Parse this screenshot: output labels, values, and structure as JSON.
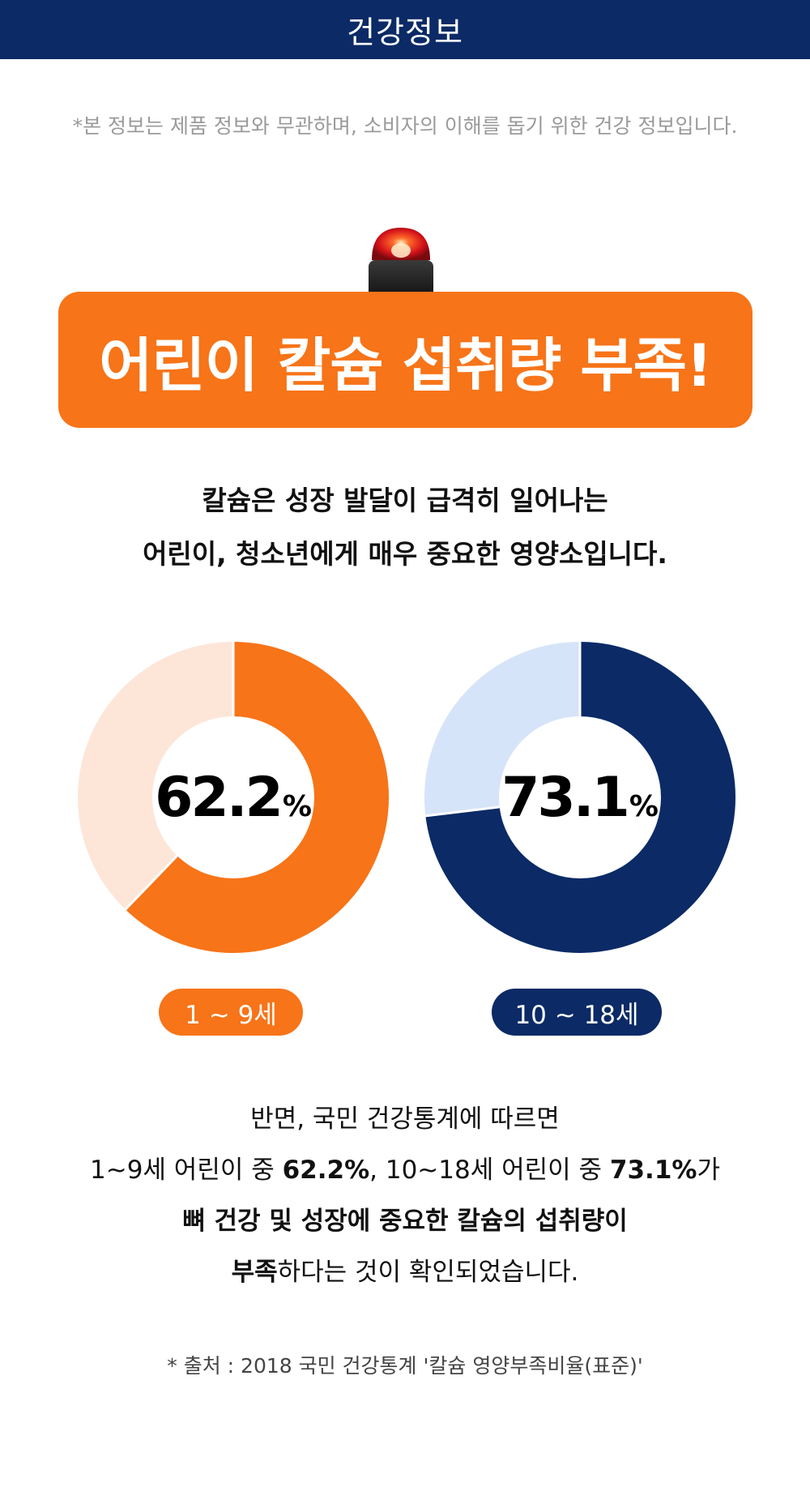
{
  "header": {
    "title": "건강정보"
  },
  "disclaimer": "*본 정보는 제품 정보와 무관하며, 소비자의 이해를 돕기 위한 건강 정보입니다.",
  "banner": {
    "title": "어린이 칼슘 섭취량 부족!",
    "color": "#f77418",
    "icon": "siren-icon"
  },
  "intro": {
    "line1": "칼슘은 성장 발달이 급격히 일어나는",
    "line2": "어린이, 청소년에게 매우 중요한 영양소입니다."
  },
  "colors": {
    "navy": "#0b2a66",
    "orange": "#f77418",
    "orange_light": "#fde6d8",
    "navy_light": "#d6e4f9"
  },
  "chart_data": [
    {
      "type": "pie",
      "category": "1 ~ 9세",
      "value": 62.2,
      "value_text": "62.2",
      "unit": "%",
      "color": "#f77418",
      "remainder_color": "#fde6d8"
    },
    {
      "type": "pie",
      "category": "10 ~ 18세",
      "value": 73.1,
      "value_text": "73.1",
      "unit": "%",
      "color": "#0b2a66",
      "remainder_color": "#d6e4f9"
    }
  ],
  "summary": {
    "line1": "반면, 국민 건강통계에 따르면",
    "line2_a": "1~9세 어린이 중 ",
    "line2_b": "62.2%",
    "line2_c": ", 10~18세 어린이 중 ",
    "line2_d": "73.1%",
    "line2_e": "가",
    "line3": "뼈 건강 및 성장에 중요한 칼슘의 섭취량이",
    "line4_a": "부족",
    "line4_b": "하다는 것이 확인되었습니다."
  },
  "source": "* 출처 : 2018 국민 건강통계 '칼슘 영양부족비율(표준)'"
}
